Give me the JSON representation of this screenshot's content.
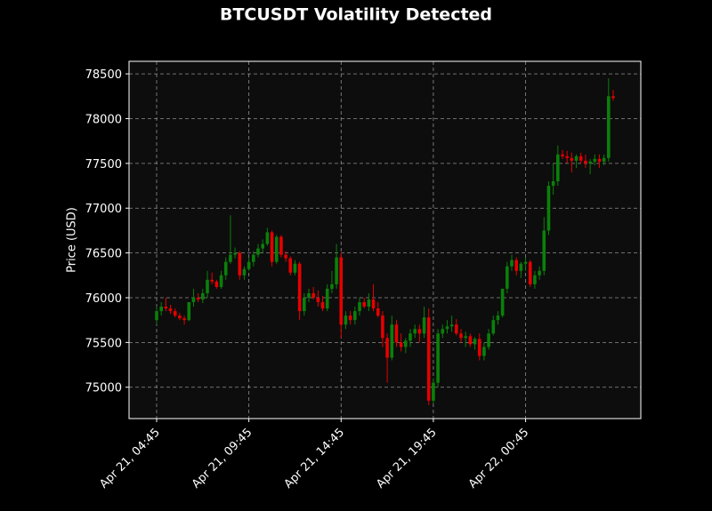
{
  "chart_data": {
    "type": "candlestick",
    "title": "BTCUSDT Volatility Detected",
    "y_label": "Price (USD)",
    "x": [
      "Apr 21, 04:45",
      "Apr 21, 05:00",
      "Apr 21, 05:15",
      "Apr 21, 05:30",
      "Apr 21, 05:45",
      "Apr 21, 06:00",
      "Apr 21, 06:15",
      "Apr 21, 06:30",
      "Apr 21, 06:45",
      "Apr 21, 07:00",
      "Apr 21, 07:15",
      "Apr 21, 07:30",
      "Apr 21, 07:45",
      "Apr 21, 08:00",
      "Apr 21, 08:15",
      "Apr 21, 08:30",
      "Apr 21, 08:45",
      "Apr 21, 09:00",
      "Apr 21, 09:15",
      "Apr 21, 09:30",
      "Apr 21, 09:45",
      "Apr 21, 10:00",
      "Apr 21, 10:15",
      "Apr 21, 10:30",
      "Apr 21, 10:45",
      "Apr 21, 11:00",
      "Apr 21, 11:15",
      "Apr 21, 11:30",
      "Apr 21, 11:45",
      "Apr 21, 12:00",
      "Apr 21, 12:15",
      "Apr 21, 12:30",
      "Apr 21, 12:45",
      "Apr 21, 13:00",
      "Apr 21, 13:15",
      "Apr 21, 13:30",
      "Apr 21, 13:45",
      "Apr 21, 14:00",
      "Apr 21, 14:15",
      "Apr 21, 14:30",
      "Apr 21, 14:45",
      "Apr 21, 15:00",
      "Apr 21, 15:15",
      "Apr 21, 15:30",
      "Apr 21, 15:45",
      "Apr 21, 16:00",
      "Apr 21, 16:15",
      "Apr 21, 16:30",
      "Apr 21, 16:45",
      "Apr 21, 17:00",
      "Apr 21, 17:15",
      "Apr 21, 17:30",
      "Apr 21, 17:45",
      "Apr 21, 18:00",
      "Apr 21, 18:15",
      "Apr 21, 18:30",
      "Apr 21, 18:45",
      "Apr 21, 19:00",
      "Apr 21, 19:15",
      "Apr 21, 19:30",
      "Apr 21, 19:45",
      "Apr 21, 20:00",
      "Apr 21, 20:15",
      "Apr 21, 20:30",
      "Apr 21, 20:45",
      "Apr 21, 21:00",
      "Apr 21, 21:15",
      "Apr 21, 21:30",
      "Apr 21, 21:45",
      "Apr 21, 22:00",
      "Apr 21, 22:15",
      "Apr 21, 22:30",
      "Apr 21, 22:45",
      "Apr 21, 23:00",
      "Apr 21, 23:15",
      "Apr 21, 23:30",
      "Apr 21, 23:45",
      "Apr 22, 00:00",
      "Apr 22, 00:15",
      "Apr 22, 00:30",
      "Apr 22, 00:45",
      "Apr 22, 01:00",
      "Apr 22, 01:15",
      "Apr 22, 01:30",
      "Apr 22, 01:45",
      "Apr 22, 02:00",
      "Apr 22, 02:15",
      "Apr 22, 02:30",
      "Apr 22, 02:45",
      "Apr 22, 03:00",
      "Apr 22, 03:15",
      "Apr 22, 03:30",
      "Apr 22, 03:45",
      "Apr 22, 04:00",
      "Apr 22, 04:15",
      "Apr 22, 04:30",
      "Apr 22, 04:45",
      "Apr 22, 05:00",
      "Apr 22, 05:15",
      "Apr 22, 05:30"
    ],
    "open": [
      75750,
      75850,
      75900,
      75880,
      75850,
      75800,
      75770,
      75750,
      75950,
      76000,
      75980,
      76050,
      76200,
      76180,
      76120,
      76250,
      76400,
      76480,
      76500,
      76250,
      76320,
      76400,
      76480,
      76550,
      76600,
      76730,
      76400,
      76680,
      76480,
      76440,
      76280,
      76380,
      75850,
      76000,
      76050,
      76000,
      75950,
      75880,
      76100,
      76150,
      76450,
      75700,
      75800,
      75750,
      75850,
      75950,
      75900,
      75980,
      75880,
      75800,
      75550,
      75330,
      75700,
      75500,
      75450,
      75520,
      75600,
      75650,
      75600,
      75780,
      74850,
      75050,
      75600,
      75650,
      75680,
      75700,
      75600,
      75550,
      75570,
      75480,
      75540,
      75350,
      75450,
      75600,
      75750,
      75800,
      76100,
      76350,
      76420,
      76300,
      76380,
      76400,
      76150,
      76250,
      76300,
      76750,
      77250,
      77300,
      77600,
      77580,
      77560,
      77530,
      77580,
      77530,
      77500,
      77520,
      77550,
      77520,
      77560,
      78250
    ],
    "high": [
      75900,
      75950,
      76000,
      75920,
      75880,
      75830,
      75800,
      75950,
      76100,
      76050,
      76100,
      76300,
      76280,
      76200,
      76300,
      76450,
      76920,
      76560,
      76520,
      76350,
      76450,
      76520,
      76600,
      76650,
      76780,
      76750,
      76700,
      76700,
      76520,
      76460,
      76420,
      76400,
      76050,
      76100,
      76120,
      76080,
      76020,
      76150,
      76300,
      76600,
      76500,
      75850,
      75850,
      75900,
      76000,
      76000,
      76050,
      76150,
      75950,
      75850,
      75600,
      75800,
      75750,
      75600,
      75550,
      75650,
      75700,
      75700,
      75900,
      75880,
      75100,
      75650,
      75700,
      75750,
      75800,
      75760,
      75650,
      75620,
      75600,
      75560,
      75600,
      75500,
      75650,
      75800,
      75850,
      76100,
      76400,
      76480,
      76450,
      76400,
      76450,
      76420,
      76300,
      76350,
      76900,
      77300,
      77500,
      77700,
      77650,
      77640,
      77620,
      77600,
      77620,
      77600,
      77550,
      77600,
      77600,
      77600,
      78450,
      78320
    ],
    "low": [
      75700,
      75800,
      75850,
      75820,
      75780,
      75750,
      75700,
      75740,
      75900,
      75950,
      75940,
      76000,
      76150,
      76100,
      76100,
      76200,
      76380,
      76440,
      76200,
      76200,
      76300,
      76350,
      76450,
      76500,
      76580,
      76350,
      76380,
      76450,
      76400,
      76250,
      76250,
      75750,
      75800,
      75950,
      75980,
      75900,
      75850,
      75850,
      76050,
      76100,
      75550,
      75650,
      75700,
      75700,
      75800,
      75880,
      75850,
      75850,
      75780,
      75450,
      75050,
      75300,
      75450,
      75400,
      75380,
      75450,
      75550,
      75500,
      75550,
      74800,
      74820,
      75000,
      75550,
      75600,
      75620,
      75580,
      75500,
      75450,
      75450,
      75420,
      75300,
      75300,
      75420,
      75580,
      75700,
      75780,
      76050,
      76300,
      76250,
      76220,
      76300,
      76120,
      76100,
      76200,
      76250,
      76700,
      77150,
      77250,
      77550,
      77500,
      77400,
      77450,
      77500,
      77450,
      77380,
      77480,
      77450,
      77480,
      77520,
      78200
    ],
    "close": [
      75850,
      75900,
      75880,
      75850,
      75800,
      75770,
      75750,
      75950,
      76000,
      75980,
      76050,
      76200,
      76180,
      76120,
      76250,
      76400,
      76480,
      76500,
      76250,
      76320,
      76400,
      76480,
      76550,
      76600,
      76730,
      76400,
      76680,
      76480,
      76440,
      76280,
      76380,
      75850,
      76000,
      76050,
      76000,
      75950,
      75880,
      76100,
      76150,
      76450,
      75700,
      75800,
      75750,
      75850,
      75950,
      75900,
      75980,
      75880,
      75800,
      75550,
      75330,
      75700,
      75500,
      75450,
      75520,
      75600,
      75650,
      75600,
      75780,
      74850,
      75050,
      75600,
      75650,
      75680,
      75700,
      75600,
      75550,
      75570,
      75480,
      75540,
      75350,
      75450,
      75600,
      75750,
      75800,
      76100,
      76350,
      76420,
      76300,
      76380,
      76400,
      76150,
      76250,
      76300,
      76750,
      77250,
      77300,
      77600,
      77580,
      77560,
      77530,
      77580,
      77530,
      77500,
      77520,
      77550,
      77520,
      77560,
      78250,
      78230
    ],
    "up_color": "#0a800a",
    "down_color": "#e60000",
    "ylim": [
      74650,
      78640
    ],
    "yticks": [
      75000,
      75500,
      76000,
      76500,
      77000,
      77500,
      78000,
      78500
    ],
    "xticks": [
      "Apr 21, 04:45",
      "Apr 21, 09:45",
      "Apr 21, 14:45",
      "Apr 21, 19:45",
      "Apr 22, 00:45"
    ],
    "grid": true
  }
}
